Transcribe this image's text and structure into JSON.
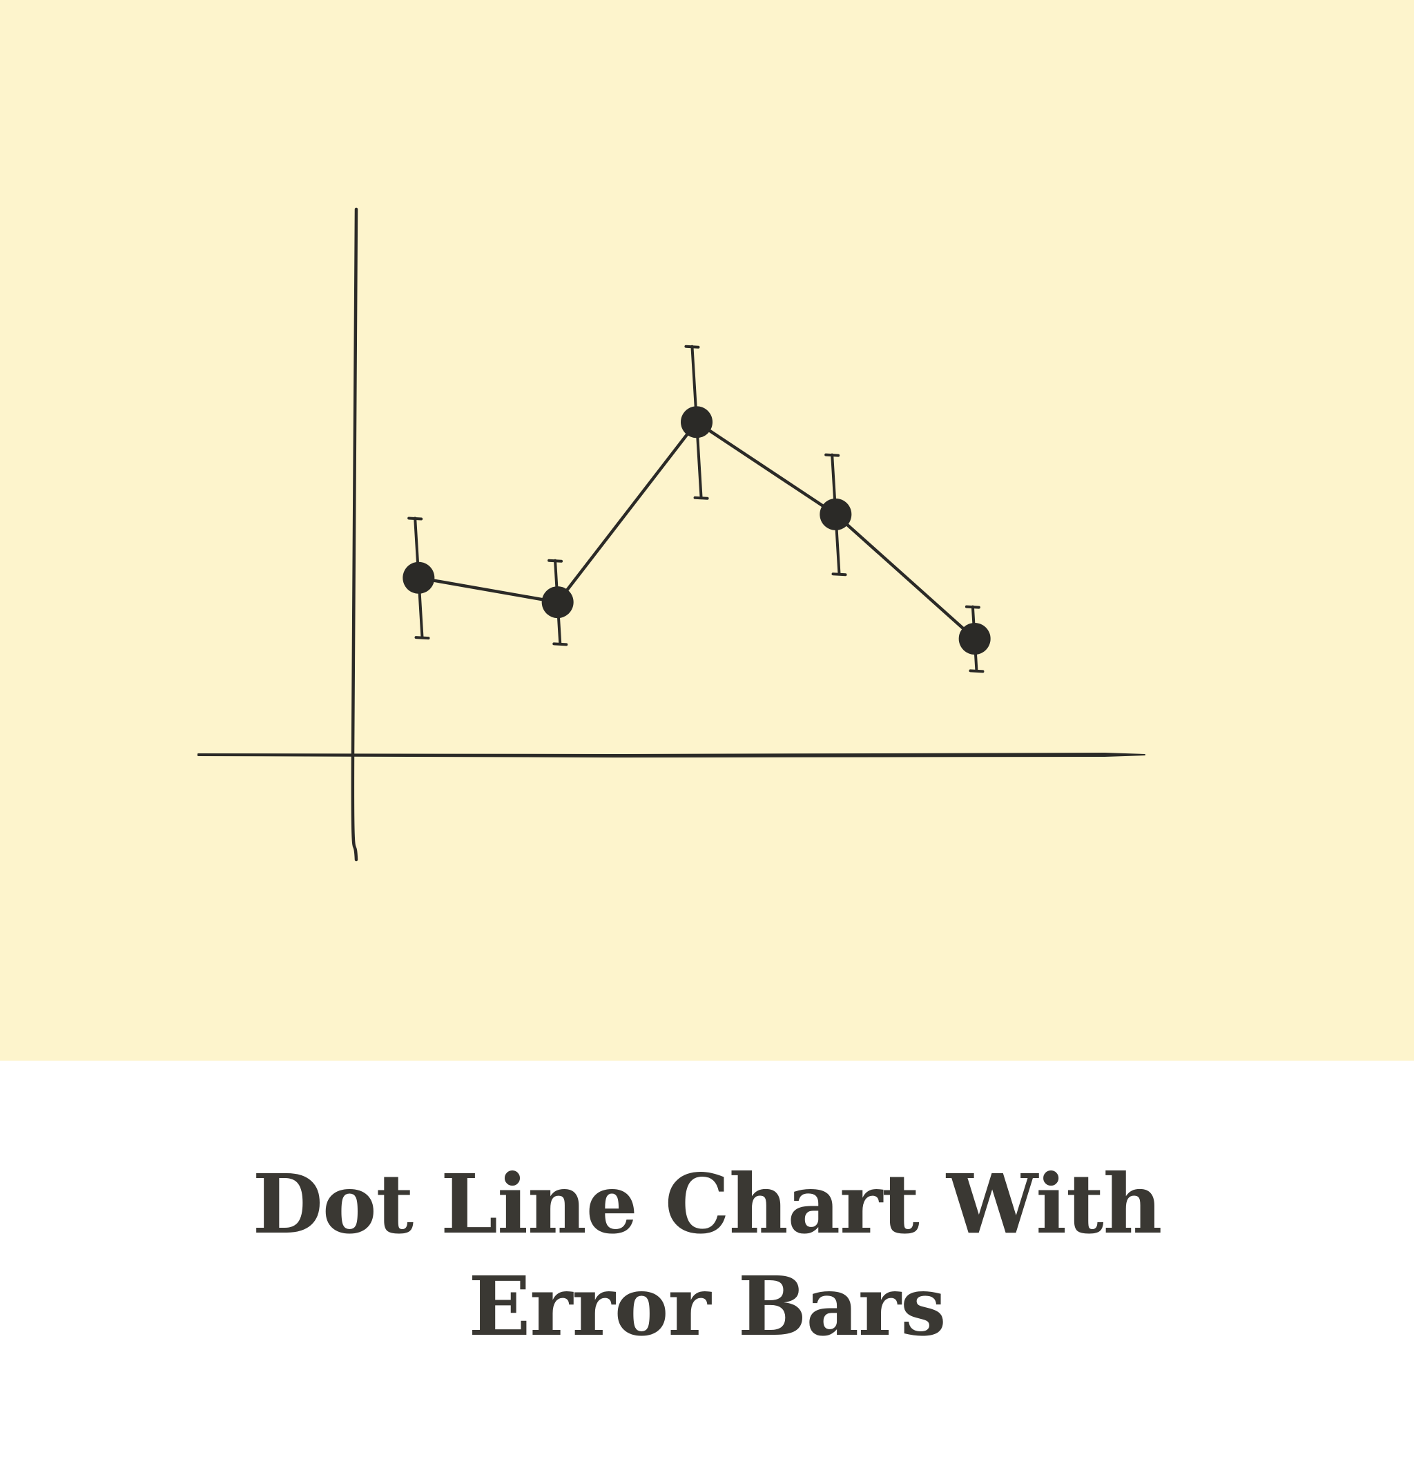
{
  "caption": {
    "line1": "Dot Line Chart With",
    "line2": "Error Bars"
  },
  "colors": {
    "panel_background": "#fdf4cc",
    "page_background": "#ffffff",
    "ink": "#2b2a27",
    "caption_text": "#3a3833"
  },
  "chart_data": {
    "type": "line",
    "markers": "dot",
    "title": "",
    "xlabel": "",
    "ylabel": "",
    "x": [
      1,
      2,
      3,
      4,
      5
    ],
    "series": [
      {
        "values": [
          27.6,
          23.8,
          51.9,
          37.5,
          18.1
        ],
        "error_low": [
          9.3,
          6.5,
          11.8,
          9.3,
          5.0
        ],
        "error_high": [
          9.3,
          6.5,
          11.8,
          9.3,
          5.0
        ]
      }
    ],
    "xlim": [
      0,
      6
    ],
    "ylim": [
      -16,
      80
    ],
    "grid": false,
    "legend": "none",
    "tick_labels": false
  }
}
